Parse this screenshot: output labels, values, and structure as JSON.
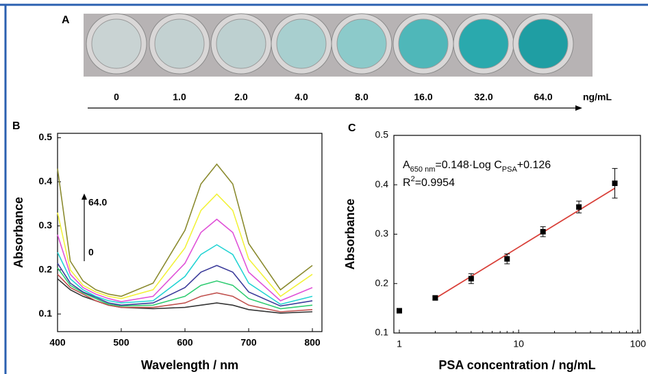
{
  "panel_a": {
    "label": "A",
    "concentrations": [
      "0",
      "1.0",
      "2.0",
      "4.0",
      "8.0",
      "16.0",
      "32.0",
      "64.0"
    ],
    "unit": "ng/mL"
  },
  "chart_data": [
    {
      "type": "line",
      "panel_label": "B",
      "x_label": "Wavelength / nm",
      "y_label": "Absorbance",
      "x": [
        400,
        420,
        440,
        460,
        480,
        500,
        550,
        600,
        625,
        650,
        675,
        700,
        750,
        800
      ],
      "series": [
        {
          "color": "#333333",
          "values": [
            0.18,
            0.155,
            0.14,
            0.13,
            0.12,
            0.115,
            0.112,
            0.115,
            0.12,
            0.125,
            0.12,
            0.11,
            0.102,
            0.105
          ]
        },
        {
          "color": "#c0504d",
          "values": [
            0.19,
            0.16,
            0.145,
            0.13,
            0.12,
            0.115,
            0.115,
            0.125,
            0.14,
            0.148,
            0.14,
            0.12,
            0.105,
            0.11
          ]
        },
        {
          "color": "#2ecc71",
          "values": [
            0.205,
            0.165,
            0.148,
            0.135,
            0.122,
            0.118,
            0.12,
            0.14,
            0.165,
            0.175,
            0.165,
            0.135,
            0.112,
            0.12
          ]
        },
        {
          "color": "#3b3b9a",
          "values": [
            0.215,
            0.17,
            0.15,
            0.138,
            0.125,
            0.12,
            0.125,
            0.16,
            0.195,
            0.21,
            0.195,
            0.15,
            0.118,
            0.13
          ]
        },
        {
          "color": "#22d3d3",
          "values": [
            0.24,
            0.18,
            0.155,
            0.14,
            0.13,
            0.125,
            0.13,
            0.185,
            0.235,
            0.257,
            0.235,
            0.17,
            0.122,
            0.14
          ]
        },
        {
          "color": "#e052d8",
          "values": [
            0.28,
            0.19,
            0.16,
            0.145,
            0.135,
            0.128,
            0.14,
            0.215,
            0.285,
            0.315,
            0.285,
            0.195,
            0.13,
            0.16
          ]
        },
        {
          "color": "#f2f23a",
          "values": [
            0.33,
            0.2,
            0.165,
            0.15,
            0.14,
            0.135,
            0.155,
            0.25,
            0.335,
            0.372,
            0.335,
            0.225,
            0.14,
            0.19
          ]
        },
        {
          "color": "#8a8a2e",
          "values": [
            0.43,
            0.22,
            0.175,
            0.155,
            0.145,
            0.14,
            0.17,
            0.29,
            0.395,
            0.44,
            0.395,
            0.26,
            0.155,
            0.21
          ]
        }
      ],
      "xlim": [
        400,
        815
      ],
      "xticks": [
        400,
        500,
        600,
        700,
        800
      ],
      "ylim": [
        0.06,
        0.51
      ],
      "yticks": [
        0.1,
        0.2,
        0.3,
        0.4,
        0.5
      ],
      "annotations": [
        "64.0",
        "0"
      ]
    },
    {
      "type": "scatter",
      "panel_label": "C",
      "x_label": "PSA concentration / ng/mL",
      "y_label": "Absorbance",
      "x_scale": "log",
      "x": [
        1,
        2,
        4,
        8,
        16,
        32,
        64
      ],
      "values": [
        0.145,
        0.171,
        0.21,
        0.25,
        0.305,
        0.355,
        0.403
      ],
      "errors": [
        0.003,
        0.004,
        0.01,
        0.01,
        0.01,
        0.012,
        0.03
      ],
      "color": "#000000",
      "fit": {
        "color": "#d9413a",
        "x": [
          2,
          64
        ],
        "values": [
          0.17,
          0.393
        ]
      },
      "xlim": [
        0.9,
        105
      ],
      "xticks": [
        1,
        10,
        100
      ],
      "ylim": [
        0.1,
        0.5
      ],
      "yticks": [
        0.1,
        0.2,
        0.3,
        0.4,
        0.5
      ],
      "equation": {
        "a": "A",
        "a_sub": "650 nm",
        "mid": "=0.148·Log C",
        "c_sub": "PSA",
        "tail": "+0.126"
      },
      "r2": {
        "r": "R",
        "sup": "2",
        "tail": "=0.9954"
      }
    }
  ]
}
